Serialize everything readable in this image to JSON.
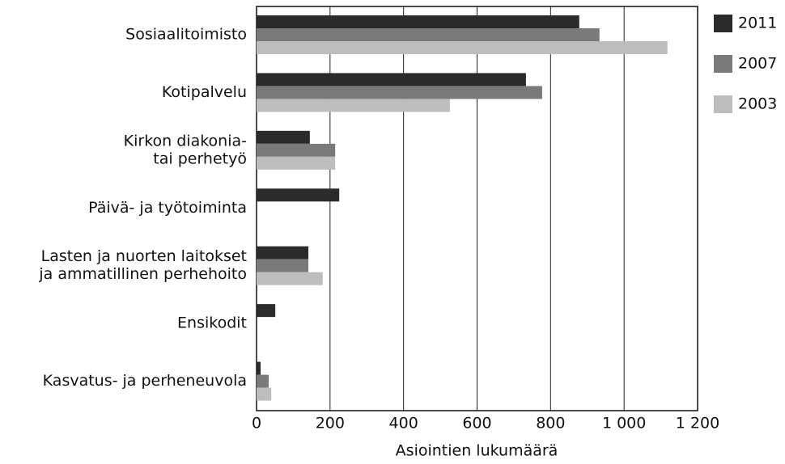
{
  "chart_data": {
    "type": "bar",
    "orientation": "horizontal",
    "categories": [
      [
        "Sosiaalitoimisto"
      ],
      [
        "Kotipalvelu"
      ],
      [
        "Kirkon diakonia-",
        "tai perhetyö"
      ],
      [
        "Päivä- ja työtoiminta"
      ],
      [
        "Lasten ja nuorten laitokset",
        "ja ammatillinen perhehoito"
      ],
      [
        "Ensikodit"
      ],
      [
        "Kasvatus- ja perheneuvola"
      ]
    ],
    "series": [
      {
        "name": "2011",
        "color": "#2b2b2b",
        "values": [
          878,
          733,
          145,
          225,
          141,
          51,
          11
        ]
      },
      {
        "name": "2007",
        "color": "#7a7a7a",
        "values": [
          933,
          777,
          214,
          null,
          141,
          null,
          33
        ]
      },
      {
        "name": "2003",
        "color": "#bdbdbd",
        "values": [
          1118,
          526,
          214,
          null,
          180,
          null,
          40
        ]
      }
    ],
    "xlabel": "Asiointien lukumäärä",
    "xlim": [
      0,
      1200
    ],
    "xticks": [
      0,
      200,
      400,
      600,
      800,
      {
        "value": 1000,
        "label": "1 000"
      },
      {
        "value": 1200,
        "label": "1 200"
      }
    ],
    "grid": true,
    "legend": "right"
  }
}
